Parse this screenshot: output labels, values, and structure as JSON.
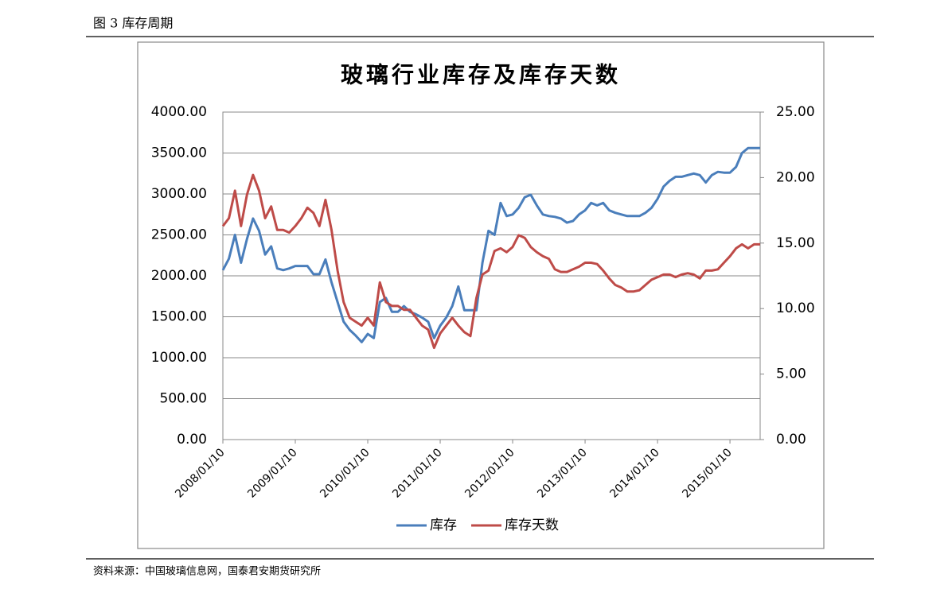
{
  "header": "图 3  库存周期",
  "source": "资料来源：中国玻璃信息网，国泰君安期货研究所",
  "chart_data": {
    "type": "line",
    "title": "玻璃行业库存及库存天数",
    "categories": [
      "2008/01/10",
      null,
      null,
      null,
      null,
      null,
      null,
      null,
      null,
      null,
      null,
      null,
      "2009/01/10",
      null,
      null,
      null,
      null,
      null,
      null,
      null,
      null,
      null,
      null,
      null,
      "2010/01/10",
      null,
      null,
      null,
      null,
      null,
      null,
      null,
      null,
      null,
      null,
      null,
      "2011/01/10",
      null,
      null,
      null,
      null,
      null,
      null,
      null,
      null,
      null,
      null,
      null,
      "2012/01/10",
      null,
      null,
      null,
      null,
      null,
      null,
      null,
      null,
      null,
      null,
      null,
      "2013/01/10",
      null,
      null,
      null,
      null,
      null,
      null,
      null,
      null,
      null,
      null,
      null,
      "2014/01/10",
      null,
      null,
      null,
      null,
      null,
      null,
      null,
      null,
      null,
      null,
      null,
      "2015/01/10",
      null,
      null,
      null,
      null,
      null
    ],
    "series": [
      {
        "name": "库存",
        "color": "#4a7ebb",
        "axis": "y",
        "values": [
          2070,
          2210,
          2500,
          2160,
          2450,
          2700,
          2550,
          2260,
          2360,
          2090,
          2070,
          2090,
          2120,
          2120,
          2120,
          2020,
          2020,
          2200,
          1920,
          1680,
          1440,
          1340,
          1270,
          1190,
          1290,
          1240,
          1680,
          1730,
          1560,
          1560,
          1630,
          1560,
          1530,
          1490,
          1440,
          1240,
          1390,
          1490,
          1630,
          1870,
          1580,
          1580,
          1580,
          2160,
          2550,
          2500,
          2890,
          2730,
          2750,
          2830,
          2960,
          2990,
          2860,
          2750,
          2730,
          2720,
          2700,
          2650,
          2670,
          2750,
          2800,
          2890,
          2860,
          2890,
          2800,
          2770,
          2750,
          2730,
          2730,
          2730,
          2770,
          2830,
          2940,
          3090,
          3160,
          3210,
          3210,
          3230,
          3250,
          3230,
          3140,
          3230,
          3270,
          3260,
          3260,
          3330,
          3500,
          3560,
          3560,
          3560
        ]
      },
      {
        "name": "库存天数",
        "color": "#be4b48",
        "axis": "y2",
        "values": [
          16.3,
          16.9,
          19.0,
          16.3,
          18.7,
          20.2,
          19.0,
          16.9,
          17.8,
          16.0,
          16.0,
          15.8,
          16.3,
          16.9,
          17.7,
          17.3,
          16.3,
          18.3,
          16.0,
          12.9,
          10.5,
          9.3,
          9.0,
          8.7,
          9.3,
          8.7,
          12.0,
          10.5,
          10.2,
          10.2,
          9.9,
          9.9,
          9.3,
          8.7,
          8.4,
          7.0,
          8.1,
          8.7,
          9.3,
          8.7,
          8.2,
          7.9,
          10.8,
          12.6,
          12.9,
          14.4,
          14.6,
          14.3,
          14.7,
          15.6,
          15.4,
          14.7,
          14.3,
          14.0,
          13.8,
          13.0,
          12.8,
          12.8,
          13.0,
          13.2,
          13.5,
          13.5,
          13.4,
          12.9,
          12.3,
          11.8,
          11.6,
          11.3,
          11.3,
          11.4,
          11.8,
          12.2,
          12.4,
          12.6,
          12.6,
          12.4,
          12.6,
          12.7,
          12.6,
          12.3,
          12.9,
          12.9,
          13.0,
          13.5,
          14.0,
          14.6,
          14.9,
          14.6,
          14.9,
          14.9
        ]
      }
    ],
    "ylim": [
      0,
      4000
    ],
    "yticks": [
      {
        "value": 0,
        "label": "0.00"
      },
      {
        "value": 500,
        "label": "500.00"
      },
      {
        "value": 1000,
        "label": "1000.00"
      },
      {
        "value": 1500,
        "label": "1500.00"
      },
      {
        "value": 2000,
        "label": "2000.00"
      },
      {
        "value": 2500,
        "label": "2500.00"
      },
      {
        "value": 3000,
        "label": "3000.00"
      },
      {
        "value": 3500,
        "label": "3500.00"
      },
      {
        "value": 4000,
        "label": "4000.00"
      }
    ],
    "y2lim": [
      0,
      25
    ],
    "y2ticks": [
      {
        "value": 0,
        "label": "0.00"
      },
      {
        "value": 5,
        "label": "5.00"
      },
      {
        "value": 10,
        "label": "10.00"
      },
      {
        "value": 15,
        "label": "15.00"
      },
      {
        "value": 20,
        "label": "20.00"
      },
      {
        "value": 25,
        "label": "25.00"
      }
    ],
    "grid": true,
    "legend": "bottom"
  }
}
